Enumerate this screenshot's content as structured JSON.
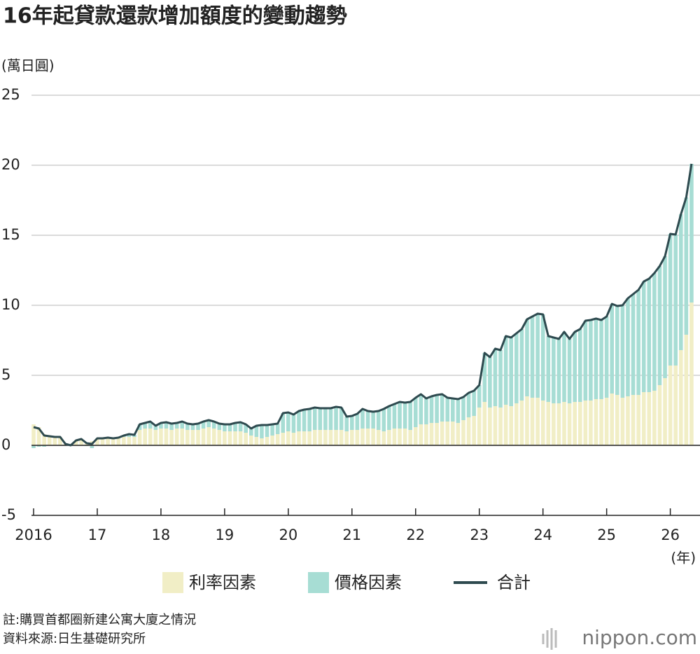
{
  "chart_data": {
    "type": "bar",
    "title": "16年起貸款還款增加額度的變動趨勢",
    "y_label": "(萬日圓)",
    "x_label": "(年)",
    "categories": [
      "2016",
      null,
      null,
      null,
      null,
      null,
      null,
      null,
      null,
      null,
      null,
      null,
      "17",
      null,
      null,
      null,
      null,
      null,
      null,
      null,
      null,
      null,
      null,
      null,
      "18",
      null,
      null,
      null,
      null,
      null,
      null,
      null,
      null,
      null,
      null,
      null,
      "19",
      null,
      null,
      null,
      null,
      null,
      null,
      null,
      null,
      null,
      null,
      null,
      "20",
      null,
      null,
      null,
      null,
      null,
      null,
      null,
      null,
      null,
      null,
      null,
      "21",
      null,
      null,
      null,
      null,
      null,
      null,
      null,
      null,
      null,
      null,
      null,
      "22",
      null,
      null,
      null,
      null,
      null,
      null,
      null,
      null,
      null,
      null,
      null,
      "23",
      null,
      null,
      null,
      null,
      null,
      null,
      null,
      null,
      null,
      null,
      null,
      "24",
      null,
      null,
      null,
      null,
      null,
      null,
      null,
      null,
      null,
      null,
      null,
      "25",
      null,
      null,
      null,
      null,
      null,
      null,
      null,
      null,
      null,
      null,
      null,
      "26",
      null,
      null,
      null,
      null
    ],
    "series": [
      {
        "name": "利率因素",
        "color": "#f1eec6",
        "values": [
          1.5,
          1.3,
          0.8,
          0.6,
          0.55,
          0.6,
          0.1,
          0.05,
          0.35,
          0.4,
          0.2,
          0.3,
          0.5,
          0.5,
          0.5,
          0.45,
          0.5,
          0.6,
          0.6,
          0.6,
          1.1,
          1.2,
          1.2,
          1.1,
          1.2,
          1.2,
          1.1,
          1.2,
          1.2,
          1.1,
          1.1,
          1.1,
          1.2,
          1.3,
          1.2,
          1.1,
          1.0,
          1.0,
          1.0,
          1.0,
          0.9,
          0.7,
          0.6,
          0.5,
          0.6,
          0.7,
          0.8,
          0.9,
          1.0,
          0.9,
          1.0,
          1.0,
          1.0,
          1.1,
          1.1,
          1.1,
          1.1,
          1.1,
          1.1,
          1.0,
          1.1,
          1.1,
          1.2,
          1.2,
          1.2,
          1.1,
          1.0,
          1.1,
          1.2,
          1.2,
          1.2,
          1.1,
          1.3,
          1.5,
          1.5,
          1.6,
          1.6,
          1.7,
          1.7,
          1.7,
          1.6,
          1.8,
          2.0,
          2.1,
          2.7,
          3.1,
          2.7,
          2.8,
          2.7,
          2.9,
          2.8,
          3.0,
          3.2,
          3.5,
          3.4,
          3.4,
          3.2,
          3.1,
          3.0,
          3.0,
          3.1,
          3.0,
          3.1,
          3.1,
          3.2,
          3.2,
          3.3,
          3.3,
          3.4,
          3.7,
          3.6,
          3.4,
          3.5,
          3.6,
          3.6,
          3.8,
          3.8,
          3.9,
          4.3,
          4.8,
          5.7,
          5.7,
          6.8,
          7.9,
          10.2
        ]
      },
      {
        "name": "價格因素",
        "color": "#a7ddd4",
        "values": [
          -0.2,
          -0.1,
          -0.1,
          0.05,
          0.05,
          0,
          0,
          -0.05,
          0,
          0.05,
          -0.05,
          -0.2,
          0,
          0,
          0.05,
          0.05,
          0.05,
          0.1,
          0.2,
          0.15,
          0.4,
          0.4,
          0.5,
          0.3,
          0.4,
          0.45,
          0.45,
          0.4,
          0.5,
          0.45,
          0.4,
          0.45,
          0.5,
          0.5,
          0.5,
          0.45,
          0.5,
          0.5,
          0.6,
          0.65,
          0.6,
          0.5,
          0.8,
          0.95,
          0.85,
          0.8,
          0.75,
          1.4,
          1.35,
          1.3,
          1.45,
          1.55,
          1.6,
          1.6,
          1.55,
          1.55,
          1.55,
          1.65,
          1.6,
          1.05,
          1.0,
          1.15,
          1.4,
          1.25,
          1.2,
          1.35,
          1.6,
          1.7,
          1.75,
          1.9,
          1.85,
          2.0,
          2.1,
          2.15,
          1.85,
          1.9,
          2.0,
          1.95,
          1.7,
          1.65,
          1.7,
          1.65,
          1.75,
          1.8,
          1.6,
          3.5,
          3.6,
          4.1,
          4.1,
          4.9,
          4.9,
          5.0,
          5.1,
          5.5,
          5.8,
          6.0,
          6.15,
          4.7,
          4.7,
          4.6,
          5.0,
          4.6,
          5.0,
          5.2,
          5.7,
          5.75,
          5.75,
          5.65,
          5.8,
          6.4,
          6.35,
          6.6,
          7.0,
          7.2,
          7.5,
          7.9,
          8.1,
          8.4,
          8.5,
          8.7,
          9.4,
          9.35,
          9.7,
          9.8,
          9.9
        ]
      },
      {
        "name": "合計",
        "color": "#2e4a4f",
        "type": "line",
        "values": [
          1.3,
          1.2,
          0.7,
          0.65,
          0.6,
          0.6,
          0.1,
          0.0,
          0.35,
          0.45,
          0.15,
          0.1,
          0.5,
          0.5,
          0.55,
          0.5,
          0.55,
          0.7,
          0.8,
          0.75,
          1.5,
          1.6,
          1.7,
          1.4,
          1.6,
          1.65,
          1.55,
          1.6,
          1.7,
          1.55,
          1.5,
          1.55,
          1.7,
          1.8,
          1.7,
          1.55,
          1.5,
          1.5,
          1.6,
          1.65,
          1.5,
          1.2,
          1.4,
          1.45,
          1.45,
          1.5,
          1.55,
          2.3,
          2.35,
          2.2,
          2.45,
          2.55,
          2.6,
          2.7,
          2.65,
          2.65,
          2.65,
          2.75,
          2.7,
          2.05,
          2.1,
          2.25,
          2.6,
          2.45,
          2.4,
          2.45,
          2.6,
          2.8,
          2.95,
          3.1,
          3.05,
          3.1,
          3.4,
          3.65,
          3.35,
          3.5,
          3.6,
          3.65,
          3.4,
          3.35,
          3.3,
          3.45,
          3.75,
          3.9,
          4.3,
          6.6,
          6.3,
          6.9,
          6.8,
          7.8,
          7.7,
          8.0,
          8.3,
          9.0,
          9.2,
          9.4,
          9.35,
          7.8,
          7.7,
          7.6,
          8.1,
          7.6,
          8.1,
          8.3,
          8.9,
          8.95,
          9.05,
          8.95,
          9.2,
          10.1,
          9.95,
          10.0,
          10.5,
          10.8,
          11.1,
          11.7,
          11.9,
          12.3,
          12.8,
          13.5,
          15.1,
          15.05,
          16.5,
          17.7,
          20.1
        ]
      }
    ],
    "ylim": [
      -5,
      25
    ],
    "yticks": [
      -5,
      0,
      5,
      10,
      15,
      20,
      25
    ],
    "grid": true,
    "notes": [
      "註:購買首都圈新建公寓大廈之情況",
      "資料來源:日生基礎研究所"
    ],
    "brand": "nippon.com"
  }
}
